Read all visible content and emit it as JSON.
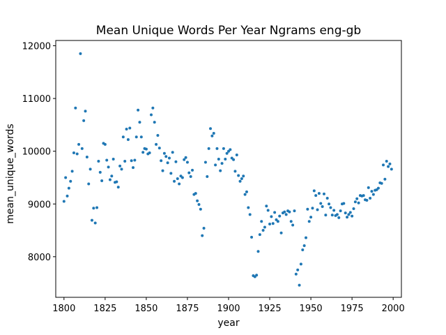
{
  "chart_data": {
    "type": "scatter",
    "title": "Mean Unique Words Per Year Ngrams eng-gb",
    "xlabel": "year",
    "ylabel": "mean_unique_words",
    "xlim": [
      1795,
      2005
    ],
    "ylim": [
      7230,
      12100
    ],
    "xticks": [
      1800,
      1825,
      1850,
      1875,
      1900,
      1925,
      1950,
      1975,
      2000
    ],
    "yticks": [
      8000,
      9000,
      10000,
      11000,
      12000
    ],
    "grid": false,
    "marker_color": "#1f77b4",
    "series": [
      {
        "points": [
          [
            1800,
            9050
          ],
          [
            1801,
            9500
          ],
          [
            1802,
            9150
          ],
          [
            1803,
            9300
          ],
          [
            1804,
            9430
          ],
          [
            1805,
            9620
          ],
          [
            1806,
            9970
          ],
          [
            1807,
            10820
          ],
          [
            1808,
            9950
          ],
          [
            1809,
            10130
          ],
          [
            1810,
            11850
          ],
          [
            1811,
            10050
          ],
          [
            1812,
            10580
          ],
          [
            1813,
            10760
          ],
          [
            1814,
            9890
          ],
          [
            1815,
            9380
          ],
          [
            1816,
            9660
          ],
          [
            1817,
            8690
          ],
          [
            1818,
            8920
          ],
          [
            1819,
            8640
          ],
          [
            1820,
            8930
          ],
          [
            1821,
            9810
          ],
          [
            1822,
            9600
          ],
          [
            1823,
            9440
          ],
          [
            1824,
            10150
          ],
          [
            1825,
            10130
          ],
          [
            1826,
            9830
          ],
          [
            1827,
            9700
          ],
          [
            1828,
            9460
          ],
          [
            1829,
            9530
          ],
          [
            1830,
            9850
          ],
          [
            1831,
            9410
          ],
          [
            1832,
            9420
          ],
          [
            1833,
            9320
          ],
          [
            1834,
            9720
          ],
          [
            1835,
            9660
          ],
          [
            1836,
            10270
          ],
          [
            1837,
            9810
          ],
          [
            1838,
            10420
          ],
          [
            1839,
            10220
          ],
          [
            1840,
            10440
          ],
          [
            1841,
            9820
          ],
          [
            1842,
            9690
          ],
          [
            1843,
            9830
          ],
          [
            1844,
            10270
          ],
          [
            1845,
            10780
          ],
          [
            1846,
            10550
          ],
          [
            1847,
            10270
          ],
          [
            1848,
            9980
          ],
          [
            1849,
            10050
          ],
          [
            1850,
            10040
          ],
          [
            1851,
            9950
          ],
          [
            1852,
            9970
          ],
          [
            1853,
            10690
          ],
          [
            1854,
            10820
          ],
          [
            1855,
            10550
          ],
          [
            1856,
            10130
          ],
          [
            1857,
            10300
          ],
          [
            1858,
            10060
          ],
          [
            1859,
            9820
          ],
          [
            1860,
            9630
          ],
          [
            1861,
            9960
          ],
          [
            1862,
            9900
          ],
          [
            1863,
            9780
          ],
          [
            1864,
            9870
          ],
          [
            1865,
            9580
          ],
          [
            1866,
            9980
          ],
          [
            1867,
            9430
          ],
          [
            1868,
            9800
          ],
          [
            1869,
            9480
          ],
          [
            1870,
            9380
          ],
          [
            1871,
            9530
          ],
          [
            1872,
            9500
          ],
          [
            1873,
            9840
          ],
          [
            1874,
            9880
          ],
          [
            1875,
            9790
          ],
          [
            1876,
            9590
          ],
          [
            1877,
            9520
          ],
          [
            1878,
            9640
          ],
          [
            1879,
            9180
          ],
          [
            1880,
            9200
          ],
          [
            1881,
            9060
          ],
          [
            1882,
            8990
          ],
          [
            1883,
            8900
          ],
          [
            1884,
            8400
          ],
          [
            1885,
            8540
          ],
          [
            1886,
            9790
          ],
          [
            1887,
            9520
          ],
          [
            1888,
            10050
          ],
          [
            1889,
            10430
          ],
          [
            1890,
            10290
          ],
          [
            1891,
            10340
          ],
          [
            1892,
            9740
          ],
          [
            1893,
            10050
          ],
          [
            1894,
            9850
          ],
          [
            1895,
            9630
          ],
          [
            1896,
            9770
          ],
          [
            1897,
            10050
          ],
          [
            1898,
            9850
          ],
          [
            1899,
            9960
          ],
          [
            1900,
            10000
          ],
          [
            1901,
            10030
          ],
          [
            1902,
            9870
          ],
          [
            1903,
            9840
          ],
          [
            1904,
            9620
          ],
          [
            1905,
            9930
          ],
          [
            1906,
            9540
          ],
          [
            1907,
            9430
          ],
          [
            1908,
            9480
          ],
          [
            1909,
            9530
          ],
          [
            1910,
            9180
          ],
          [
            1911,
            9230
          ],
          [
            1912,
            8930
          ],
          [
            1913,
            8800
          ],
          [
            1914,
            8370
          ],
          [
            1915,
            7640
          ],
          [
            1916,
            7620
          ],
          [
            1917,
            7650
          ],
          [
            1918,
            8100
          ],
          [
            1919,
            8420
          ],
          [
            1920,
            8670
          ],
          [
            1921,
            8500
          ],
          [
            1922,
            8560
          ],
          [
            1923,
            8960
          ],
          [
            1924,
            8880
          ],
          [
            1925,
            8620
          ],
          [
            1926,
            8760
          ],
          [
            1927,
            8630
          ],
          [
            1928,
            8840
          ],
          [
            1929,
            8700
          ],
          [
            1930,
            8670
          ],
          [
            1931,
            8770
          ],
          [
            1932,
            8450
          ],
          [
            1933,
            8830
          ],
          [
            1934,
            8850
          ],
          [
            1935,
            8800
          ],
          [
            1936,
            8870
          ],
          [
            1937,
            8850
          ],
          [
            1938,
            8670
          ],
          [
            1939,
            8600
          ],
          [
            1940,
            8870
          ],
          [
            1941,
            7670
          ],
          [
            1942,
            7750
          ],
          [
            1943,
            7460
          ],
          [
            1944,
            7860
          ],
          [
            1945,
            8130
          ],
          [
            1946,
            8210
          ],
          [
            1947,
            8360
          ],
          [
            1948,
            8900
          ],
          [
            1949,
            8670
          ],
          [
            1950,
            8750
          ],
          [
            1951,
            8920
          ],
          [
            1952,
            9250
          ],
          [
            1953,
            9160
          ],
          [
            1954,
            8890
          ],
          [
            1955,
            9200
          ],
          [
            1956,
            9010
          ],
          [
            1957,
            8950
          ],
          [
            1958,
            9190
          ],
          [
            1959,
            8790
          ],
          [
            1960,
            9110
          ],
          [
            1961,
            9000
          ],
          [
            1962,
            8930
          ],
          [
            1963,
            8790
          ],
          [
            1964,
            8880
          ],
          [
            1965,
            8780
          ],
          [
            1966,
            8800
          ],
          [
            1967,
            8740
          ],
          [
            1968,
            8870
          ],
          [
            1969,
            9000
          ],
          [
            1970,
            9010
          ],
          [
            1971,
            8830
          ],
          [
            1972,
            8750
          ],
          [
            1973,
            8800
          ],
          [
            1974,
            8840
          ],
          [
            1975,
            8770
          ],
          [
            1976,
            8910
          ],
          [
            1977,
            9040
          ],
          [
            1978,
            9100
          ],
          [
            1979,
            9020
          ],
          [
            1980,
            9160
          ],
          [
            1981,
            9150
          ],
          [
            1982,
            9160
          ],
          [
            1983,
            9080
          ],
          [
            1984,
            9070
          ],
          [
            1985,
            9310
          ],
          [
            1986,
            9110
          ],
          [
            1987,
            9240
          ],
          [
            1988,
            9180
          ],
          [
            1989,
            9260
          ],
          [
            1990,
            9270
          ],
          [
            1991,
            9300
          ],
          [
            1992,
            9400
          ],
          [
            1993,
            9390
          ],
          [
            1994,
            9740
          ],
          [
            1995,
            9470
          ],
          [
            1996,
            9810
          ],
          [
            1997,
            9710
          ],
          [
            1998,
            9760
          ],
          [
            1999,
            9660
          ]
        ]
      }
    ]
  }
}
